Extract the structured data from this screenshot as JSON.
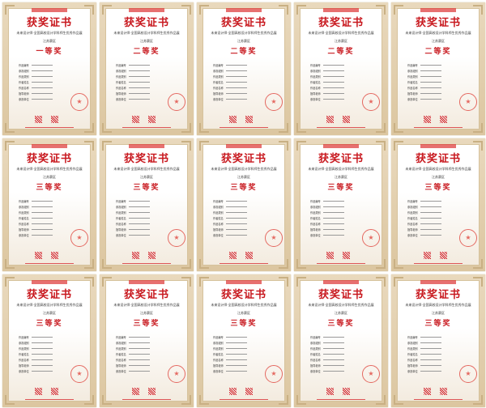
{
  "certificate": {
    "title": "获奖证书",
    "subtitle": "未来设计师·全国高校设计学科师生优秀作品展",
    "region": "江苏赛区",
    "field_labels": [
      "作品编号",
      "参赛组别",
      "作品类别",
      "作者姓名",
      "作品名称",
      "指导老师",
      "参赛单位"
    ],
    "seal_icon": "star-seal-icon",
    "accent_color": "#c8181e"
  },
  "awards": [
    "一等奖",
    "二等奖",
    "二等奖",
    "二等奖",
    "二等奖",
    "三等奖",
    "三等奖",
    "三等奖",
    "三等奖",
    "三等奖",
    "三等奖",
    "三等奖",
    "三等奖",
    "三等奖",
    "三等奖"
  ]
}
